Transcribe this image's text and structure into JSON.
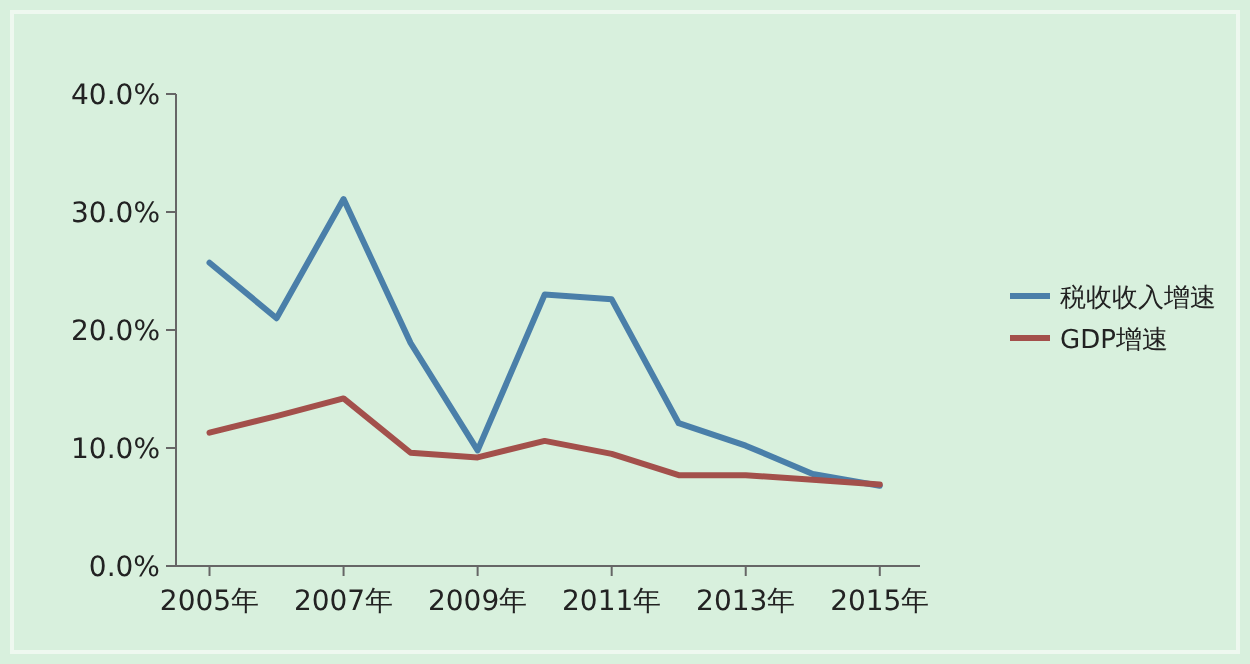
{
  "chart_data": {
    "type": "line",
    "x": [
      2005,
      2006,
      2007,
      2008,
      2009,
      2010,
      2011,
      2012,
      2013,
      2014,
      2015
    ],
    "series": [
      {
        "name": "税收收入增速",
        "color": "#4a7fa9",
        "values": [
          25.7,
          21.0,
          31.1,
          18.9,
          9.8,
          23.0,
          22.6,
          12.1,
          10.2,
          7.8,
          6.8
        ]
      },
      {
        "name": "GDP增速",
        "color": "#a3504b",
        "values": [
          11.3,
          12.7,
          14.2,
          9.6,
          9.2,
          10.6,
          9.5,
          7.7,
          7.7,
          7.3,
          6.9
        ]
      }
    ],
    "xlim": [
      2004.5,
      2015.6
    ],
    "xticks": [
      {
        "value": 2005,
        "label": "2005年"
      },
      {
        "value": 2007,
        "label": "2007年"
      },
      {
        "value": 2009,
        "label": "2009年"
      },
      {
        "value": 2011,
        "label": "2011年"
      },
      {
        "value": 2013,
        "label": "2013年"
      },
      {
        "value": 2015,
        "label": "2015年"
      }
    ],
    "ylim": [
      0,
      40
    ],
    "yticks": [
      {
        "value": 0,
        "label": "0.0%"
      },
      {
        "value": 10,
        "label": "10.0%"
      },
      {
        "value": 20,
        "label": "20.0%"
      },
      {
        "value": 30,
        "label": "30.0%"
      },
      {
        "value": 40,
        "label": "40.0%"
      }
    ],
    "legend": "right",
    "grid": false,
    "marker": "none",
    "line_style": "solid"
  }
}
